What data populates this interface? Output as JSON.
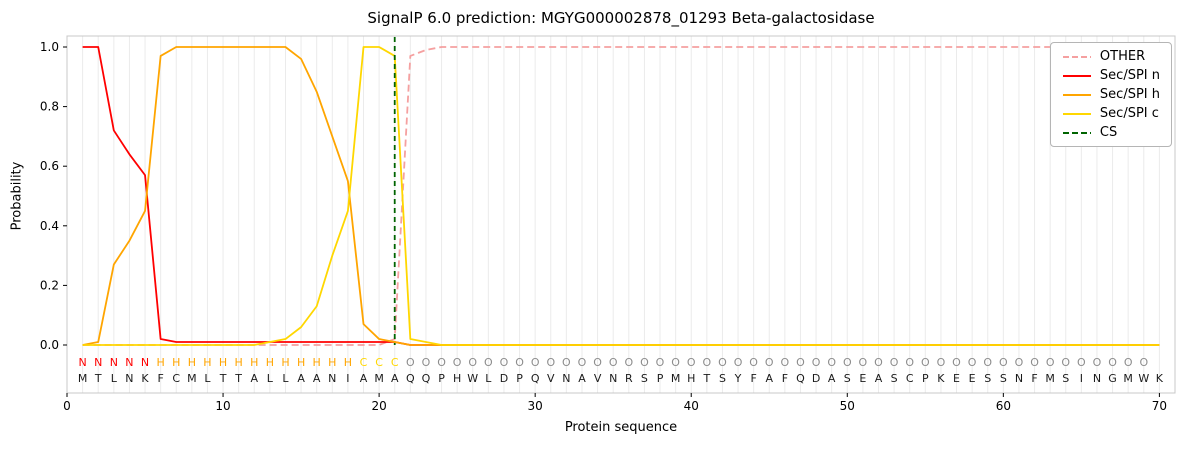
{
  "chart_data": {
    "type": "line",
    "title": "SignalP 6.0 prediction: MGYG000002878_01293 Beta-galactosidase",
    "xlabel": "Protein sequence",
    "ylabel": "Probability",
    "xticks": [
      0,
      10,
      20,
      30,
      40,
      50,
      60,
      70
    ],
    "yticks": [
      "0.0",
      "0.2",
      "0.4",
      "0.6",
      "0.8",
      "1.0"
    ],
    "xlim": [
      0,
      71
    ],
    "ylim": [
      0,
      1.05
    ],
    "grid": "vertical-per-residue",
    "legend_position": "upper right",
    "n_residues": 70,
    "x_start": 1,
    "colors": {
      "grid": "#ebebeb",
      "frame": "#c8c8c8",
      "residue_text": "#1a1a1a"
    },
    "series": [
      {
        "name": "OTHER",
        "color": "#f5a0a0",
        "dash": true,
        "values": [
          0,
          0,
          0,
          0,
          0,
          0,
          0,
          0,
          0,
          0,
          0,
          0,
          0,
          0,
          0,
          0,
          0,
          0,
          0,
          0,
          0.02,
          0.97,
          0.99,
          1,
          1,
          1,
          1,
          1,
          1,
          1,
          1,
          1,
          1,
          1,
          1,
          1,
          1,
          1,
          1,
          1,
          1,
          1,
          1,
          1,
          1,
          1,
          1,
          1,
          1,
          1,
          1,
          1,
          1,
          1,
          1,
          1,
          1,
          1,
          1,
          1,
          1,
          1,
          1,
          1,
          1,
          1,
          1,
          1,
          1,
          1
        ]
      },
      {
        "name": "Sec/SPI n",
        "color": "#ff0000",
        "dash": false,
        "values": [
          1,
          1,
          0.72,
          0.64,
          0.57,
          0.02,
          0.01,
          0.01,
          0.01,
          0.01,
          0.01,
          0.01,
          0.01,
          0.01,
          0.01,
          0.01,
          0.01,
          0.01,
          0.01,
          0.01,
          0.01,
          0,
          0,
          0,
          0,
          0,
          0,
          0,
          0,
          0,
          0,
          0,
          0,
          0,
          0,
          0,
          0,
          0,
          0,
          0,
          0,
          0,
          0,
          0,
          0,
          0,
          0,
          0,
          0,
          0,
          0,
          0,
          0,
          0,
          0,
          0,
          0,
          0,
          0,
          0,
          0,
          0,
          0,
          0,
          0,
          0,
          0,
          0,
          0,
          0
        ]
      },
      {
        "name": "Sec/SPI h",
        "color": "#ffa500",
        "dash": false,
        "values": [
          0,
          0.01,
          0.27,
          0.35,
          0.45,
          0.97,
          1,
          1,
          1,
          1,
          1,
          1,
          1,
          1,
          0.96,
          0.85,
          0.7,
          0.55,
          0.07,
          0.02,
          0.01,
          0,
          0,
          0,
          0,
          0,
          0,
          0,
          0,
          0,
          0,
          0,
          0,
          0,
          0,
          0,
          0,
          0,
          0,
          0,
          0,
          0,
          0,
          0,
          0,
          0,
          0,
          0,
          0,
          0,
          0,
          0,
          0,
          0,
          0,
          0,
          0,
          0,
          0,
          0,
          0,
          0,
          0,
          0,
          0,
          0,
          0,
          0,
          0,
          0
        ]
      },
      {
        "name": "Sec/SPI c",
        "color": "#ffd700",
        "dash": false,
        "values": [
          0,
          0,
          0,
          0,
          0,
          0,
          0,
          0,
          0,
          0,
          0,
          0,
          0.01,
          0.02,
          0.06,
          0.13,
          0.3,
          0.45,
          1,
          1,
          0.97,
          0.02,
          0.01,
          0,
          0,
          0,
          0,
          0,
          0,
          0,
          0,
          0,
          0,
          0,
          0,
          0,
          0,
          0,
          0,
          0,
          0,
          0,
          0,
          0,
          0,
          0,
          0,
          0,
          0,
          0,
          0,
          0,
          0,
          0,
          0,
          0,
          0,
          0,
          0,
          0,
          0,
          0,
          0,
          0,
          0,
          0,
          0,
          0,
          0,
          0
        ]
      }
    ],
    "cs": {
      "name": "CS",
      "position": 21,
      "color": "#006400",
      "dash": true
    },
    "sequence": "MTLNKFCMLTTALLAANIAMAQQPHWLDPQVNAVNRSPMHTSYFAFQDASEASCPKEESSNFMSINGMWK",
    "region_labels": "NNNNNHHHHHHHHHHHHHCCCOOOOOOOOOOOOOOOOOOOOOOOOOOOOOOOOOOOOOOOOOOOOOOOO",
    "region_colors": {
      "N": "#ff0000",
      "H": "#ffa500",
      "C": "#ffd700",
      "O": "#8c8c8c"
    }
  }
}
